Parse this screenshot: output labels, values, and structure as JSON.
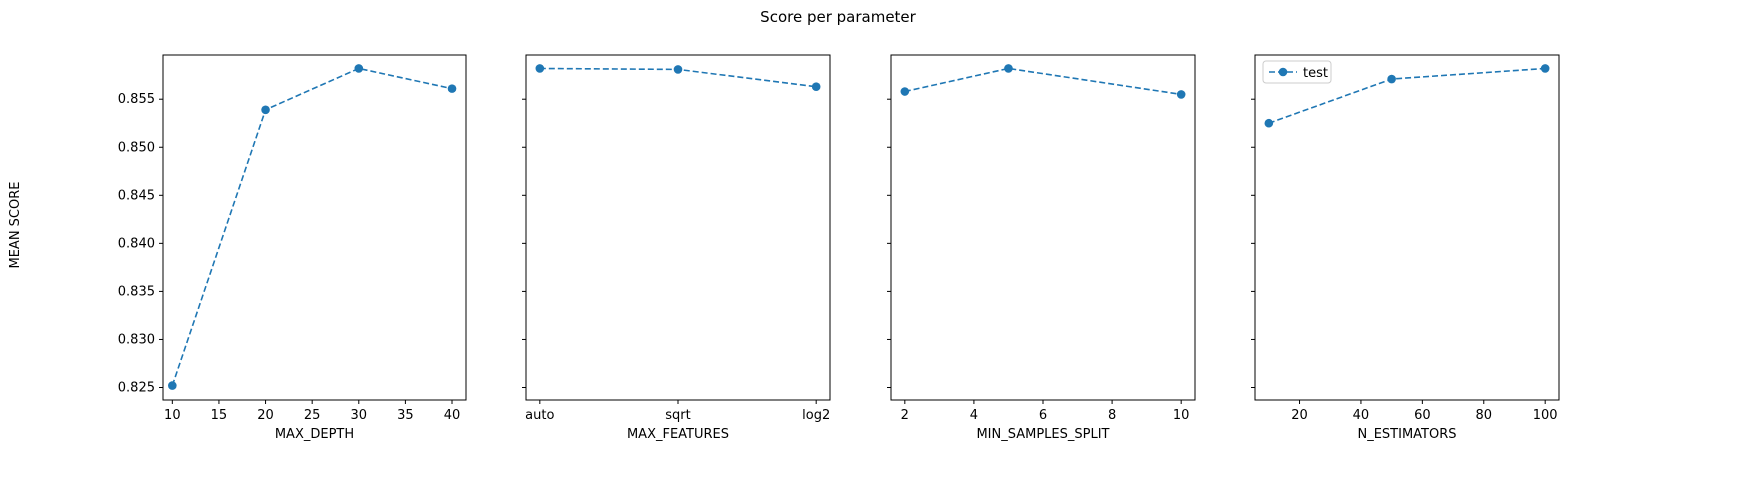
{
  "figure": {
    "title": "Score per parameter",
    "ylabel": "MEAN SCORE"
  },
  "chart_data": [
    {
      "type": "line",
      "xlabel": "MAX_DEPTH",
      "x": [
        10,
        20,
        30,
        40
      ],
      "xlim": [
        9,
        41.5
      ],
      "xticks": [
        10,
        15,
        20,
        25,
        30,
        35,
        40
      ],
      "series": [
        {
          "values": [
            0.8252,
            0.8539,
            0.8582,
            0.8561
          ],
          "color": "#1f77b4",
          "marker": "circle",
          "linestyle": "dashed"
        }
      ],
      "ylim": [
        0.8237,
        0.8596
      ],
      "yticks": [
        0.825,
        0.83,
        0.835,
        0.84,
        0.845,
        0.85,
        0.855
      ],
      "show_ytick_labels": true
    },
    {
      "type": "line",
      "xlabel": "MAX_FEATURES",
      "categories": [
        "auto",
        "sqrt",
        "log2"
      ],
      "x": [
        0,
        1,
        2
      ],
      "xlim": [
        -0.1,
        2.1
      ],
      "series": [
        {
          "values": [
            0.8582,
            0.8581,
            0.8563
          ],
          "color": "#1f77b4",
          "marker": "circle",
          "linestyle": "dashed"
        }
      ],
      "ylim": [
        0.8237,
        0.8596
      ],
      "yticks": [
        0.825,
        0.83,
        0.835,
        0.84,
        0.845,
        0.85,
        0.855
      ],
      "show_ytick_labels": false
    },
    {
      "type": "line",
      "xlabel": "MIN_SAMPLES_SPLIT",
      "x": [
        2,
        5,
        10
      ],
      "xlim": [
        1.6,
        10.4
      ],
      "xticks": [
        2,
        4,
        6,
        8,
        10
      ],
      "series": [
        {
          "values": [
            0.8558,
            0.8582,
            0.8555
          ],
          "color": "#1f77b4",
          "marker": "circle",
          "linestyle": "dashed"
        }
      ],
      "ylim": [
        0.8237,
        0.8596
      ],
      "yticks": [
        0.825,
        0.83,
        0.835,
        0.84,
        0.845,
        0.85,
        0.855
      ],
      "show_ytick_labels": false
    },
    {
      "type": "line",
      "xlabel": "N_ESTIMATORS",
      "x": [
        10,
        50,
        100
      ],
      "xlim": [
        5.5,
        104.5
      ],
      "xticks": [
        20,
        40,
        60,
        80,
        100
      ],
      "series": [
        {
          "name": "test",
          "values": [
            0.8525,
            0.8571,
            0.8582
          ],
          "color": "#1f77b4",
          "marker": "circle",
          "linestyle": "dashed"
        }
      ],
      "ylim": [
        0.8237,
        0.8596
      ],
      "yticks": [
        0.825,
        0.83,
        0.835,
        0.84,
        0.845,
        0.85,
        0.855
      ],
      "show_ytick_labels": false,
      "legend": "top-left"
    }
  ]
}
